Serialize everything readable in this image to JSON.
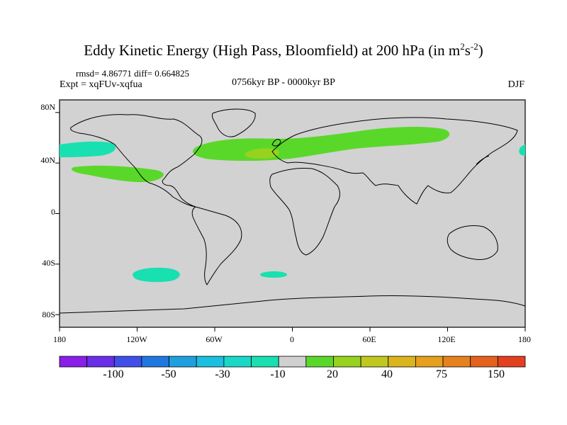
{
  "title": "Eddy Kinetic Energy (High Pass, Bloomfield) at 200 hPa (in m",
  "title_unit_sup1": "2",
  "title_unit_mid": "s",
  "title_unit_sup2": "-2",
  "title_close": ")",
  "stats": "rmsd= 4.86771 diff= 0.664825",
  "expt": "Expt = xqFUv-xqfua",
  "period": "0756kyr BP - 0000kyr BP",
  "season": "DJF",
  "lat_labels": [
    "80N",
    "40N",
    "0",
    "40S",
    "80S"
  ],
  "lon_labels": [
    "180",
    "120W",
    "60W",
    "0",
    "60E",
    "120E",
    "180"
  ],
  "colorbar": {
    "colors": [
      "#8a1ee8",
      "#6a2de8",
      "#3f4fe8",
      "#1f78e0",
      "#1ea0e0",
      "#19c0e0",
      "#19d8c8",
      "#19e0b0",
      "#d0d0d0",
      "#5ad82a",
      "#96d21e",
      "#c0c81e",
      "#dcb41e",
      "#e6a01e",
      "#e6821e",
      "#e4621e",
      "#e2401e"
    ],
    "labels": [
      "-100",
      "-50",
      "-30",
      "-10",
      "20",
      "40",
      "75",
      "150"
    ]
  },
  "map": {
    "ocean_color": "#d2d2d2",
    "positive_color": "#5ad82a",
    "positive_strong_color": "#96d21e",
    "negative_color": "#19e0b0"
  }
}
